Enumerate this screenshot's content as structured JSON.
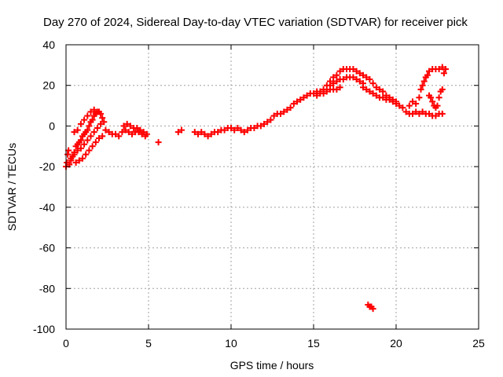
{
  "chart_data": {
    "type": "scatter",
    "title": "Day 270 of 2024, Sidereal Day-to-day VTEC variation (SDTVAR) for receiver pick",
    "xlabel": "GPS time / hours",
    "ylabel": "SDTVAR / TECUs",
    "xlim": [
      0,
      25
    ],
    "ylim": [
      -100,
      40
    ],
    "xticks": [
      0,
      5,
      10,
      15,
      20,
      25
    ],
    "yticks": [
      -100,
      -80,
      -60,
      -40,
      -20,
      0,
      20,
      40
    ],
    "xtick_labels": [
      "0",
      "5",
      "10",
      "15",
      "20",
      "25"
    ],
    "ytick_labels": [
      "-100",
      "-80",
      "-60",
      "-40",
      "-20",
      "0",
      "20",
      "40"
    ],
    "grid": true,
    "marker": "+",
    "color": "#ff0000",
    "series": [
      {
        "name": "SDTVAR",
        "points": [
          [
            0.0,
            -20
          ],
          [
            0.05,
            -18
          ],
          [
            0.1,
            -14
          ],
          [
            0.15,
            -12
          ],
          [
            0.2,
            -19
          ],
          [
            0.3,
            -17
          ],
          [
            0.4,
            -15
          ],
          [
            0.5,
            -13
          ],
          [
            0.6,
            -10
          ],
          [
            0.7,
            -9
          ],
          [
            0.8,
            -8
          ],
          [
            0.9,
            -7
          ],
          [
            1.0,
            -5
          ],
          [
            1.1,
            -4
          ],
          [
            1.2,
            -3
          ],
          [
            1.3,
            -2
          ],
          [
            1.4,
            0
          ],
          [
            1.5,
            2
          ],
          [
            1.6,
            3
          ],
          [
            1.7,
            5
          ],
          [
            1.8,
            6
          ],
          [
            1.9,
            7
          ],
          [
            2.0,
            7
          ],
          [
            2.1,
            6
          ],
          [
            2.2,
            4
          ],
          [
            2.3,
            2
          ],
          [
            0.3,
            -16
          ],
          [
            0.5,
            -14
          ],
          [
            0.7,
            -12
          ],
          [
            0.9,
            -11
          ],
          [
            1.1,
            -9
          ],
          [
            1.3,
            -7
          ],
          [
            1.5,
            -5
          ],
          [
            1.7,
            -3
          ],
          [
            1.9,
            -1
          ],
          [
            2.1,
            1
          ],
          [
            0.6,
            -18
          ],
          [
            0.8,
            -17
          ],
          [
            1.0,
            -16
          ],
          [
            1.2,
            -14
          ],
          [
            1.4,
            -12
          ],
          [
            1.6,
            -10
          ],
          [
            1.8,
            -8
          ],
          [
            2.0,
            -6
          ],
          [
            2.2,
            -5
          ],
          [
            0.5,
            -3
          ],
          [
            0.7,
            -2
          ],
          [
            0.9,
            1
          ],
          [
            1.1,
            3
          ],
          [
            1.3,
            5
          ],
          [
            1.5,
            7
          ],
          [
            1.7,
            8
          ],
          [
            2.4,
            -2
          ],
          [
            2.6,
            -3
          ],
          [
            2.8,
            -4
          ],
          [
            3.0,
            -4
          ],
          [
            3.2,
            -5
          ],
          [
            3.4,
            -3
          ],
          [
            3.6,
            -2
          ],
          [
            3.8,
            -3
          ],
          [
            4.0,
            -4
          ],
          [
            4.2,
            -3
          ],
          [
            4.4,
            -3
          ],
          [
            4.6,
            -4
          ],
          [
            4.8,
            -5
          ],
          [
            3.5,
            0
          ],
          [
            3.7,
            1
          ],
          [
            3.9,
            0
          ],
          [
            4.1,
            -1
          ],
          [
            4.3,
            -1
          ],
          [
            4.5,
            -2
          ],
          [
            4.7,
            -3
          ],
          [
            4.9,
            -4
          ],
          [
            5.6,
            -8
          ],
          [
            6.8,
            -3
          ],
          [
            7.0,
            -2
          ],
          [
            7.8,
            -3
          ],
          [
            8.0,
            -4
          ],
          [
            8.2,
            -3
          ],
          [
            8.4,
            -4
          ],
          [
            8.6,
            -5
          ],
          [
            8.8,
            -4
          ],
          [
            9.0,
            -3
          ],
          [
            9.2,
            -3
          ],
          [
            9.4,
            -2
          ],
          [
            9.6,
            -2
          ],
          [
            9.8,
            -1
          ],
          [
            10.0,
            -1
          ],
          [
            10.2,
            -2
          ],
          [
            10.4,
            -1
          ],
          [
            10.6,
            -2
          ],
          [
            10.8,
            -3
          ],
          [
            11.0,
            -2
          ],
          [
            11.2,
            -1
          ],
          [
            11.4,
            -1
          ],
          [
            11.6,
            0
          ],
          [
            11.8,
            0
          ],
          [
            12.0,
            1
          ],
          [
            12.2,
            2
          ],
          [
            12.4,
            3
          ],
          [
            12.6,
            5
          ],
          [
            12.8,
            6
          ],
          [
            13.0,
            6
          ],
          [
            13.2,
            7
          ],
          [
            13.4,
            8
          ],
          [
            13.6,
            9
          ],
          [
            13.8,
            11
          ],
          [
            14.0,
            12
          ],
          [
            14.2,
            13
          ],
          [
            14.4,
            14
          ],
          [
            14.6,
            15
          ],
          [
            14.8,
            16
          ],
          [
            15.0,
            16
          ],
          [
            15.2,
            17
          ],
          [
            15.4,
            17
          ],
          [
            15.6,
            16
          ],
          [
            15.8,
            17
          ],
          [
            16.0,
            18
          ],
          [
            16.2,
            18
          ],
          [
            16.4,
            18
          ],
          [
            16.6,
            19
          ],
          [
            15.2,
            15
          ],
          [
            15.4,
            16
          ],
          [
            15.6,
            18
          ],
          [
            15.8,
            20
          ],
          [
            16.0,
            22
          ],
          [
            16.2,
            24
          ],
          [
            16.4,
            25
          ],
          [
            16.6,
            27
          ],
          [
            16.8,
            28
          ],
          [
            17.0,
            28
          ],
          [
            17.2,
            28
          ],
          [
            17.4,
            28
          ],
          [
            16.0,
            20
          ],
          [
            16.2,
            21
          ],
          [
            16.4,
            22
          ],
          [
            16.6,
            23
          ],
          [
            16.8,
            23
          ],
          [
            17.0,
            24
          ],
          [
            17.2,
            24
          ],
          [
            17.4,
            24
          ],
          [
            17.6,
            23
          ],
          [
            17.8,
            22
          ],
          [
            18.0,
            21
          ],
          [
            17.6,
            27
          ],
          [
            17.8,
            26
          ],
          [
            18.0,
            25
          ],
          [
            18.2,
            24
          ],
          [
            18.4,
            23
          ],
          [
            18.6,
            21
          ],
          [
            18.8,
            19
          ],
          [
            19.0,
            18
          ],
          [
            19.2,
            17
          ],
          [
            19.4,
            15
          ],
          [
            19.6,
            14
          ],
          [
            19.8,
            13
          ],
          [
            20.0,
            12
          ],
          [
            18.0,
            19
          ],
          [
            18.2,
            18
          ],
          [
            18.4,
            17
          ],
          [
            18.6,
            16
          ],
          [
            18.8,
            15
          ],
          [
            19.0,
            14
          ],
          [
            19.2,
            14
          ],
          [
            19.4,
            13
          ],
          [
            19.6,
            13
          ],
          [
            19.8,
            12
          ],
          [
            20.0,
            11
          ],
          [
            20.2,
            10
          ],
          [
            20.4,
            9
          ],
          [
            20.6,
            7
          ],
          [
            20.8,
            6
          ],
          [
            21.0,
            6
          ],
          [
            21.2,
            7
          ],
          [
            21.4,
            6
          ],
          [
            21.6,
            7
          ],
          [
            21.8,
            6
          ],
          [
            22.0,
            6
          ],
          [
            22.2,
            5
          ],
          [
            22.4,
            5
          ],
          [
            22.6,
            6
          ],
          [
            22.8,
            6
          ],
          [
            20.8,
            10
          ],
          [
            21.0,
            12
          ],
          [
            21.2,
            11
          ],
          [
            21.4,
            14
          ],
          [
            21.5,
            18
          ],
          [
            21.6,
            20
          ],
          [
            21.7,
            22
          ],
          [
            21.8,
            24
          ],
          [
            21.9,
            25
          ],
          [
            22.0,
            27
          ],
          [
            22.2,
            28
          ],
          [
            22.4,
            28
          ],
          [
            22.6,
            28
          ],
          [
            22.8,
            29
          ],
          [
            22.0,
            15
          ],
          [
            22.1,
            14
          ],
          [
            22.2,
            12
          ],
          [
            22.3,
            10
          ],
          [
            22.4,
            9
          ],
          [
            22.5,
            10
          ],
          [
            22.6,
            14
          ],
          [
            22.7,
            17
          ],
          [
            22.8,
            18
          ],
          [
            22.9,
            26
          ],
          [
            23.0,
            28
          ],
          [
            18.3,
            -88
          ],
          [
            18.4,
            -89
          ],
          [
            18.5,
            -89
          ],
          [
            18.6,
            -90
          ]
        ]
      }
    ]
  }
}
